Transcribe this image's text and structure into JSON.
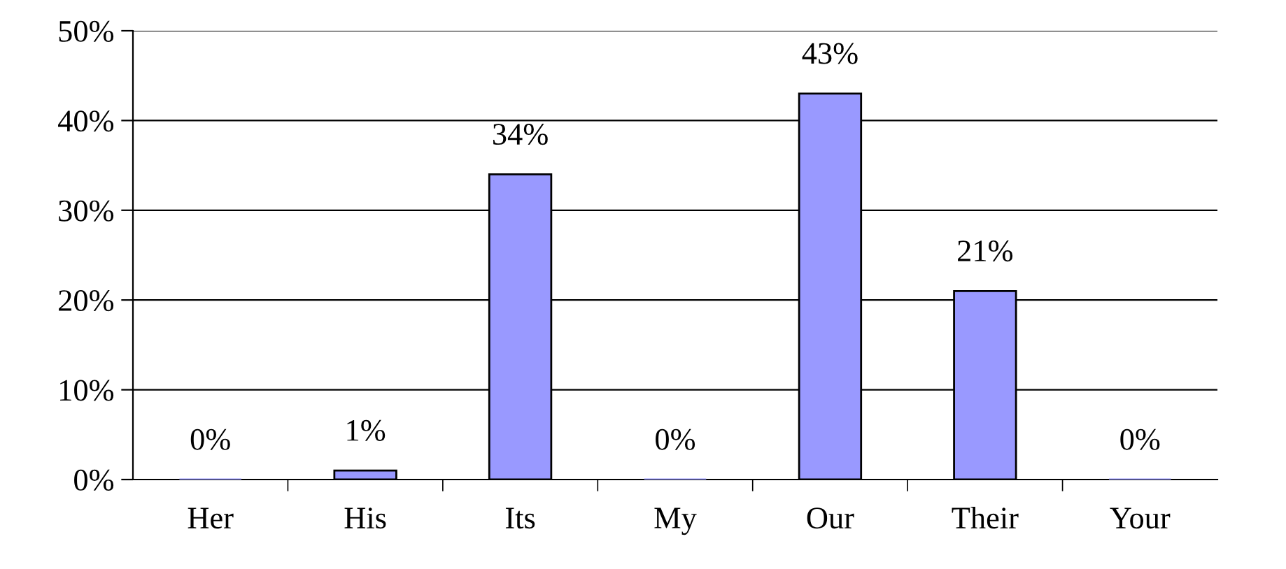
{
  "chart_data": {
    "type": "bar",
    "categories": [
      "Her",
      "His",
      "Its",
      "My",
      "Our",
      "Their",
      "Your"
    ],
    "values": [
      0,
      1,
      34,
      0,
      43,
      21,
      0
    ],
    "value_labels": [
      "0%",
      "1%",
      "34%",
      "0%",
      "43%",
      "21%",
      "0%"
    ],
    "color": "#9999ff",
    "ylim": [
      0,
      50
    ],
    "yticks": [
      {
        "value": 0,
        "label": "0%"
      },
      {
        "value": 10,
        "label": "10%"
      },
      {
        "value": 20,
        "label": "20%"
      },
      {
        "value": 30,
        "label": "30%"
      },
      {
        "value": 40,
        "label": "40%"
      },
      {
        "value": 50,
        "label": "50%"
      }
    ],
    "grid": "y"
  }
}
